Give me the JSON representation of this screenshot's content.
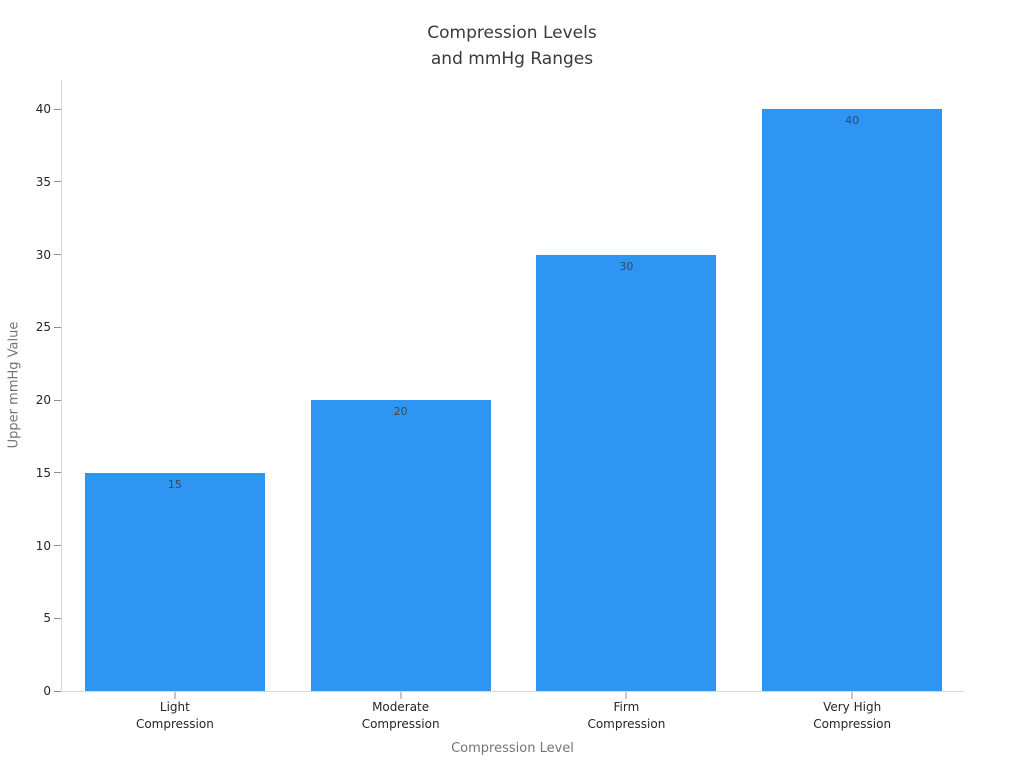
{
  "chart_data": {
    "type": "bar",
    "title": "Compression Levels\nand mmHg Ranges",
    "title_lines": [
      "Compression Levels",
      "and mmHg Ranges"
    ],
    "categories": [
      "Light Compression",
      "Moderate Compression",
      "Firm Compression",
      "Very High Compression"
    ],
    "category_lines": [
      [
        "Light",
        "Compression"
      ],
      [
        "Moderate",
        "Compression"
      ],
      [
        "Firm",
        "Compression"
      ],
      [
        "Very High",
        "Compression"
      ]
    ],
    "values": [
      15,
      20,
      30,
      40
    ],
    "bar_labels": [
      "15",
      "20",
      "30",
      "40"
    ],
    "xlabel": "Compression Level",
    "ylabel": "Upper mmHg Value",
    "yticks": [
      0,
      5,
      10,
      15,
      20,
      25,
      30,
      35,
      40
    ],
    "ylim": [
      0,
      42
    ],
    "grid": false,
    "legend": null,
    "colors": {
      "bar": "#2E95F3",
      "spine": "#D9D9D9",
      "tick_mark": "#8C8C8C",
      "tick_label": "#262626",
      "axis_title": "#757575",
      "title": "#3A3A3A",
      "bar_value_label": "#3B4A54",
      "background": "#FFFFFF"
    }
  }
}
